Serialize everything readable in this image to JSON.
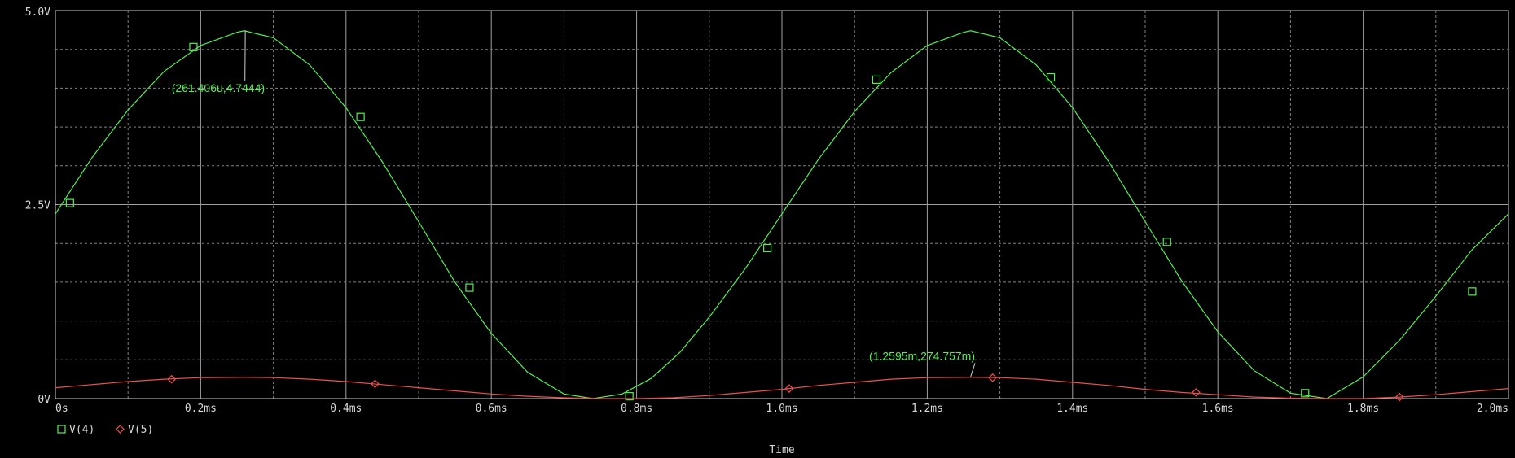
{
  "colors": {
    "background": "#000000",
    "grid_major": "#a0a0a0",
    "grid_minor": "#808080",
    "frame": "#cfcfcf",
    "text": "#d8d8d8",
    "v4": "#55ee55",
    "v5": "#ee4f4f"
  },
  "chart_data": {
    "type": "line",
    "title": "",
    "xlabel": "Time",
    "ylabel": "",
    "xlim": [
      0,
      2.0
    ],
    "ylim": [
      0,
      5.0
    ],
    "x_unit": "ms",
    "y_unit": "V",
    "grid": true,
    "x_ticks": [
      {
        "value": 0.0,
        "label": "0s"
      },
      {
        "value": 0.2,
        "label": "0.2ms"
      },
      {
        "value": 0.4,
        "label": "0.4ms"
      },
      {
        "value": 0.6,
        "label": "0.6ms"
      },
      {
        "value": 0.8,
        "label": "0.8ms"
      },
      {
        "value": 1.0,
        "label": "1.0ms"
      },
      {
        "value": 1.2,
        "label": "1.2ms"
      },
      {
        "value": 1.4,
        "label": "1.4ms"
      },
      {
        "value": 1.6,
        "label": "1.6ms"
      },
      {
        "value": 1.8,
        "label": "1.8ms"
      },
      {
        "value": 2.0,
        "label": "2.0ms"
      }
    ],
    "y_ticks": [
      {
        "value": 0.0,
        "label": "0V"
      },
      {
        "value": 2.5,
        "label": "2.5V"
      },
      {
        "value": 5.0,
        "label": "5.0V"
      }
    ],
    "legend_position": "bottom-left",
    "series": [
      {
        "name": "V(4)",
        "color": "#55ee55",
        "marker": "square",
        "x": [
          0.0,
          0.05,
          0.1,
          0.15,
          0.2,
          0.25,
          0.26,
          0.3,
          0.35,
          0.4,
          0.45,
          0.5,
          0.55,
          0.6,
          0.65,
          0.7,
          0.74,
          0.78,
          0.82,
          0.86,
          0.9,
          0.95,
          1.0,
          1.05,
          1.1,
          1.15,
          1.2,
          1.25,
          1.26,
          1.3,
          1.35,
          1.4,
          1.45,
          1.5,
          1.55,
          1.6,
          1.65,
          1.7,
          1.75,
          1.8,
          1.85,
          1.9,
          1.95,
          2.0
        ],
        "y": [
          2.38,
          3.1,
          3.72,
          4.22,
          4.55,
          4.72,
          4.74,
          4.65,
          4.3,
          3.75,
          3.05,
          2.28,
          1.5,
          0.84,
          0.34,
          0.06,
          0.0,
          0.06,
          0.26,
          0.6,
          1.05,
          1.68,
          2.38,
          3.08,
          3.7,
          4.2,
          4.55,
          4.72,
          4.74,
          4.65,
          4.3,
          3.75,
          3.05,
          2.28,
          1.52,
          0.86,
          0.36,
          0.07,
          0.0,
          0.28,
          0.75,
          1.32,
          1.92,
          2.38
        ],
        "markers": {
          "x": [
            0.02,
            0.19,
            0.42,
            0.57,
            0.79,
            0.98,
            1.13,
            1.37,
            1.53,
            1.72,
            1.95
          ],
          "y": [
            2.52,
            4.53,
            3.63,
            1.43,
            0.03,
            1.94,
            4.11,
            4.14,
            2.02,
            0.07,
            1.38
          ]
        }
      },
      {
        "name": "V(5)",
        "color": "#ee4f4f",
        "marker": "diamond",
        "x": [
          0.0,
          0.05,
          0.1,
          0.15,
          0.2,
          0.26,
          0.3,
          0.35,
          0.4,
          0.45,
          0.5,
          0.55,
          0.6,
          0.65,
          0.7,
          0.75,
          0.8,
          0.85,
          0.9,
          0.95,
          1.0,
          1.05,
          1.1,
          1.15,
          1.2,
          1.26,
          1.3,
          1.35,
          1.4,
          1.45,
          1.5,
          1.55,
          1.6,
          1.65,
          1.7,
          1.75,
          1.8,
          1.85,
          1.9,
          1.95,
          2.0
        ],
        "y": [
          0.14,
          0.18,
          0.22,
          0.25,
          0.27,
          0.275,
          0.27,
          0.25,
          0.22,
          0.18,
          0.14,
          0.1,
          0.06,
          0.03,
          0.01,
          0.0,
          0.0,
          0.01,
          0.04,
          0.08,
          0.12,
          0.17,
          0.21,
          0.25,
          0.27,
          0.275,
          0.27,
          0.25,
          0.21,
          0.17,
          0.12,
          0.08,
          0.05,
          0.02,
          0.005,
          0.0,
          0.0,
          0.02,
          0.05,
          0.09,
          0.13
        ],
        "markers": {
          "x": [
            0.16,
            0.44,
            1.01,
            1.29,
            1.57,
            1.85
          ],
          "y": [
            0.25,
            0.19,
            0.13,
            0.27,
            0.08,
            0.02
          ]
        }
      }
    ],
    "annotations": [
      {
        "label": "(261.406u,4.7444)",
        "x": 0.2614,
        "y": 4.7444,
        "label_x": 0.16,
        "label_y": 3.95,
        "color": "#55ee55"
      },
      {
        "label": "(1.2595m,274.757m)",
        "x": 1.2595,
        "y": 0.2748,
        "label_x": 1.12,
        "label_y": 0.5,
        "color": "#55ee55"
      }
    ]
  }
}
